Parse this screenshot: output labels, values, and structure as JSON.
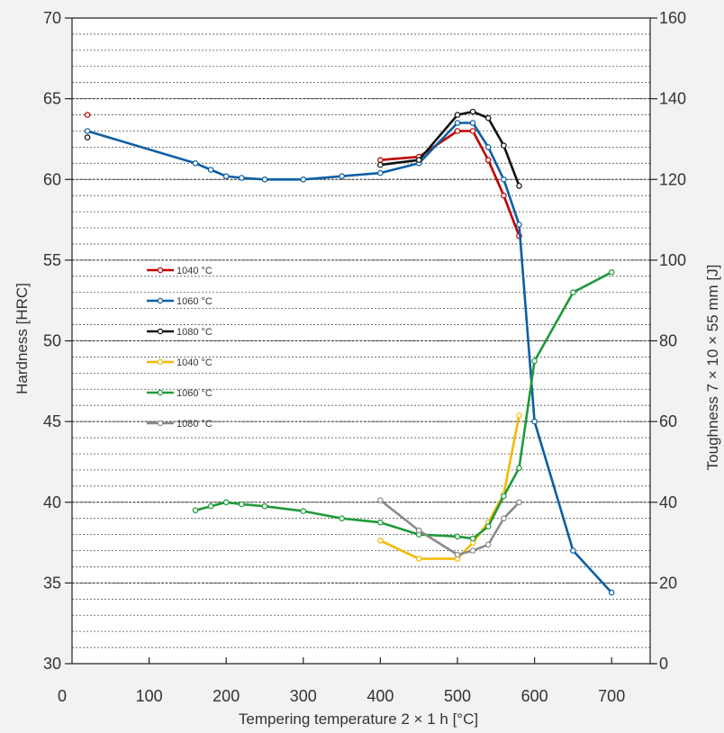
{
  "chart_data": {
    "type": "line",
    "xlabel": "Tempering temperature 2 × 1 h [°C]",
    "ylabel_left": "Hardness [HRC]",
    "ylabel_right": "Toughness 7 × 10 × 55 mm [J]",
    "xlim": [
      0,
      750
    ],
    "ylim_left": [
      30,
      70
    ],
    "ylim_right": [
      0,
      160
    ],
    "x_ticks": [
      0,
      100,
      200,
      300,
      400,
      500,
      600,
      700
    ],
    "y_left_ticks": [
      30,
      35,
      40,
      45,
      50,
      55,
      60,
      65,
      70
    ],
    "y_right_ticks": [
      0,
      20,
      40,
      60,
      80,
      100,
      120,
      140,
      160
    ],
    "grid": "dashed horizontal",
    "legend_position": "left-center",
    "series": [
      {
        "name": "1040 °C",
        "axis": "left",
        "color": "#c00000",
        "points": [
          [
            20,
            64.0
          ],
          [
            400,
            61.2
          ],
          [
            450,
            61.4
          ],
          [
            500,
            63.0
          ],
          [
            520,
            63.0
          ],
          [
            540,
            61.2
          ],
          [
            560,
            59.0
          ],
          [
            580,
            56.5
          ]
        ],
        "isolated_first_point": true
      },
      {
        "name": "1060 °C",
        "axis": "left",
        "color": "#0b5fa5",
        "points": [
          [
            20,
            63.0
          ],
          [
            160,
            61.0
          ],
          [
            180,
            60.6
          ],
          [
            200,
            60.2
          ],
          [
            220,
            60.1
          ],
          [
            250,
            60.0
          ],
          [
            300,
            60.0
          ],
          [
            350,
            60.2
          ],
          [
            400,
            60.4
          ],
          [
            450,
            61.0
          ],
          [
            500,
            63.5
          ],
          [
            520,
            63.5
          ],
          [
            540,
            62.0
          ],
          [
            560,
            60.0
          ],
          [
            580,
            57.2
          ],
          [
            600,
            45.0
          ],
          [
            650,
            37.0
          ],
          [
            700,
            34.4
          ]
        ]
      },
      {
        "name": "1080 °C",
        "axis": "left",
        "color": "#111111",
        "points": [
          [
            20,
            62.6
          ],
          [
            400,
            60.9
          ],
          [
            450,
            61.2
          ],
          [
            500,
            64.0
          ],
          [
            520,
            64.2
          ],
          [
            540,
            63.8
          ],
          [
            560,
            62.1
          ],
          [
            580,
            59.6
          ]
        ],
        "isolated_first_point": true
      },
      {
        "name": "1040 °C",
        "axis": "right",
        "color": "#f5b800",
        "points": [
          [
            400,
            30.5
          ],
          [
            450,
            26.0
          ],
          [
            500,
            26.0
          ],
          [
            520,
            30.0
          ],
          [
            540,
            35.0
          ],
          [
            560,
            42.0
          ],
          [
            580,
            61.5
          ]
        ]
      },
      {
        "name": "1060 °C",
        "axis": "right",
        "color": "#1f9a3a",
        "points": [
          [
            160,
            38.0
          ],
          [
            180,
            39.0
          ],
          [
            200,
            40.0
          ],
          [
            220,
            39.5
          ],
          [
            250,
            39.0
          ],
          [
            300,
            37.8
          ],
          [
            350,
            36.0
          ],
          [
            400,
            35.0
          ],
          [
            450,
            32.0
          ],
          [
            500,
            31.5
          ],
          [
            520,
            31.0
          ],
          [
            540,
            34.0
          ],
          [
            560,
            41.5
          ],
          [
            580,
            48.5
          ],
          [
            600,
            75.0
          ],
          [
            650,
            92.0
          ],
          [
            700,
            97.0
          ]
        ]
      },
      {
        "name": "1080 °C",
        "axis": "right",
        "color": "#8a8a8a",
        "points": [
          [
            400,
            40.5
          ],
          [
            450,
            33.0
          ],
          [
            500,
            27.0
          ],
          [
            520,
            28.0
          ],
          [
            540,
            29.5
          ],
          [
            560,
            36.0
          ],
          [
            580,
            40.0
          ]
        ]
      }
    ]
  }
}
